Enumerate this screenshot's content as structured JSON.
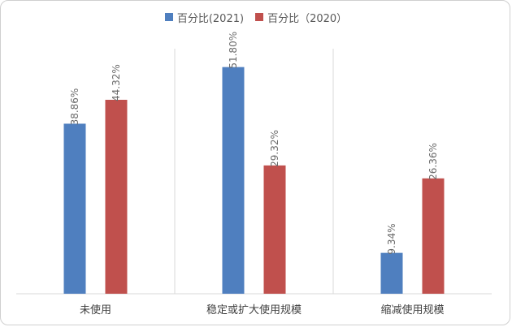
{
  "chart_data": {
    "type": "bar",
    "title": "",
    "xlabel": "",
    "ylabel": "",
    "categories": [
      "未使用",
      "稳定或扩大使用规模",
      "缩减使用规模"
    ],
    "series": [
      {
        "name": "百分比(2021)",
        "color": "#4f7fbf",
        "values": [
          38.86,
          51.8,
          9.34
        ],
        "labels": [
          "38.86%",
          "51.80%",
          "9.34%"
        ]
      },
      {
        "name": "百分比（2020）",
        "color": "#c0504d",
        "values": [
          44.32,
          29.32,
          26.36
        ],
        "labels": [
          "44.32%",
          "29.32%",
          "26.36%"
        ]
      }
    ],
    "ylim": [
      0,
      56
    ],
    "grid": false,
    "legend_position": "top-center",
    "category_separators": true
  }
}
